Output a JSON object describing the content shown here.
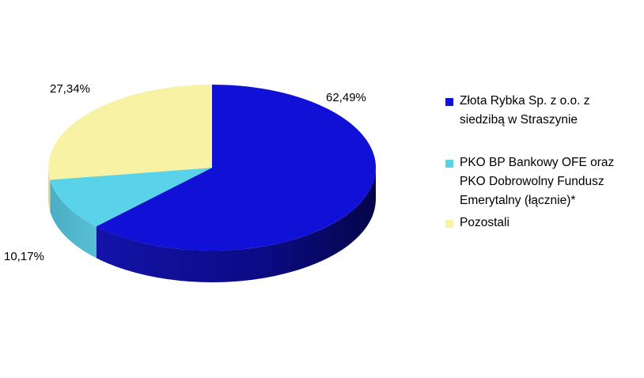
{
  "chart_data": {
    "type": "pie",
    "style": "3d",
    "categories": [
      "Złota Rybka Sp. z o.o. z siedzibą w Straszynie",
      "PKO BP Bankowy OFE oraz PKO Dobrowolny Fundusz Emerytalny (łącznie)*",
      "Pozostali"
    ],
    "values": [
      62.49,
      10.17,
      27.34
    ],
    "value_labels": [
      "62,49%",
      "10,17%",
      "27,34%"
    ],
    "legend_lines": [
      "Złota Rybka Sp. z o.o. z\nsiedzibą w Straszynie",
      "PKO BP Bankowy OFE oraz\nPKO Dobrowolny Fundusz\nEmerytalny (łącznie)*",
      "Pozostali"
    ],
    "colors": [
      "#1010d6",
      "#5ad3ea",
      "#f8f3a4"
    ],
    "side_colors": [
      "#08087a",
      "#3fa8bf",
      "#d8d290"
    ],
    "legend_position": "right",
    "title": "",
    "start_angle_deg": 0,
    "direction": "clockwise"
  }
}
